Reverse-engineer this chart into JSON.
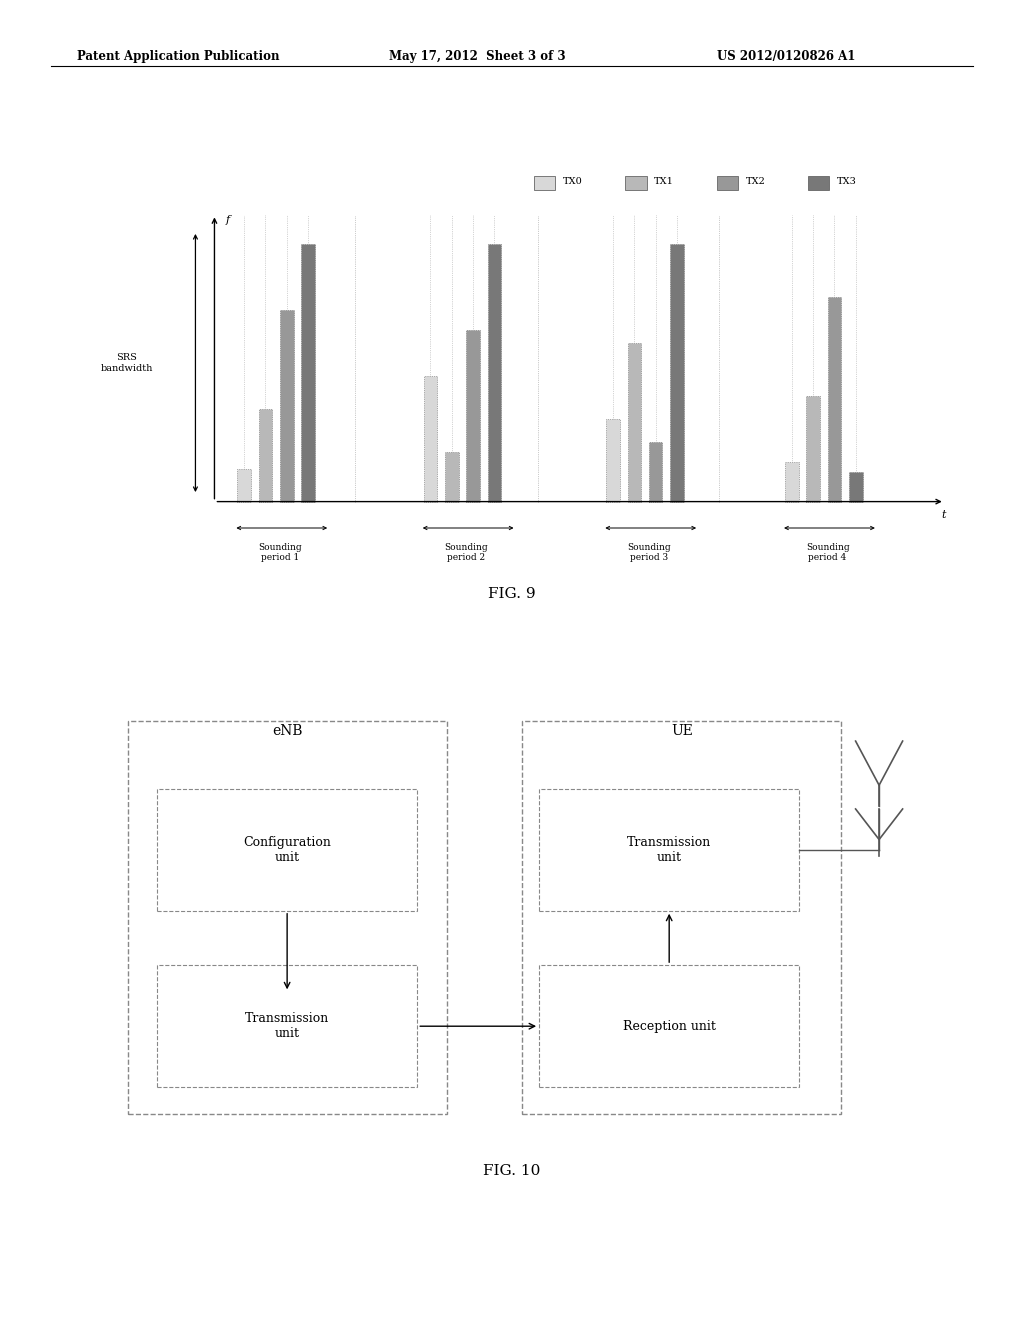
{
  "page_title_left": "Patent Application Publication",
  "page_title_center": "May 17, 2012  Sheet 3 of 3",
  "page_title_right": "US 2012/0120826 A1",
  "fig9_label": "FIG. 9",
  "fig10_label": "FIG. 10",
  "legend_labels": [
    "TX0",
    "TX1",
    "TX2",
    "TX3"
  ],
  "bar_colors": [
    "#d8d8d8",
    "#b8b8b8",
    "#989898",
    "#787878"
  ],
  "srs_label": "SRS\nbandwidth",
  "freq_label": "f",
  "time_label": "t",
  "period_labels": [
    "Sounding\nperiod 1",
    "Sounding\nperiod 2",
    "Sounding\nperiod 3",
    "Sounding\nperiod 4"
  ],
  "enb_label": "eNB",
  "ue_label": "UE",
  "config_unit_label": "Configuration\nunit",
  "tx_unit_enb_label": "Transmission\nunit",
  "tx_unit_ue_label": "Transmission\nunit",
  "rx_unit_label": "Reception unit",
  "bg_color": "#ffffff",
  "box_border_color": "#888888",
  "outer_box_border": "#aaaaaa",
  "bars_per_period": 4,
  "period_bar_data": [
    [
      [
        0,
        1.0
      ],
      [
        1,
        2.8
      ],
      [
        2,
        5.8
      ],
      [
        3,
        7.8
      ]
    ],
    [
      [
        0,
        3.8
      ],
      [
        1,
        1.5
      ],
      [
        2,
        5.2
      ],
      [
        3,
        7.8
      ]
    ],
    [
      [
        0,
        2.5
      ],
      [
        1,
        4.8
      ],
      [
        2,
        1.8
      ],
      [
        3,
        7.8
      ]
    ],
    [
      [
        0,
        1.2
      ],
      [
        1,
        3.2
      ],
      [
        2,
        6.2
      ],
      [
        3,
        0.9
      ]
    ]
  ]
}
